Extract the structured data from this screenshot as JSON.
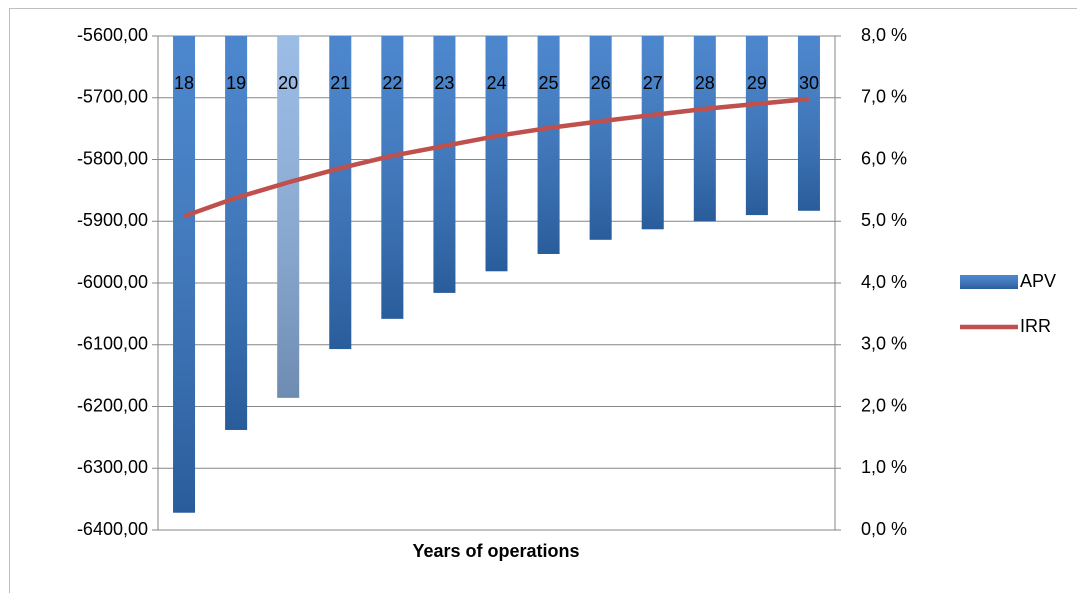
{
  "chart_data": {
    "type": "bar_line",
    "x_label": "Years of operations",
    "categories": [
      "18",
      "19",
      "20",
      "21",
      "22",
      "23",
      "24",
      "25",
      "26",
      "27",
      "28",
      "29",
      "30"
    ],
    "series": [
      {
        "name": "APV",
        "type": "bar",
        "color": "#3476c6",
        "bar_colors": [
          "#3476c6",
          "#3476c6",
          "#8db3e2",
          "#3476c6",
          "#3476c6",
          "#3476c6",
          "#3476c6",
          "#3476c6",
          "#3476c6",
          "#3476c6",
          "#3476c6",
          "#3476c6",
          "#3476c6"
        ],
        "values": [
          -6372,
          -6238,
          -6186,
          -6107,
          -6058,
          -6016,
          -5981,
          -5953,
          -5930,
          -5913,
          -5900,
          -5890,
          -5883
        ]
      },
      {
        "name": "IRR",
        "type": "line",
        "axis": "y2",
        "color": "#c0504d",
        "values": [
          5.08,
          5.38,
          5.63,
          5.86,
          6.06,
          6.22,
          6.38,
          6.51,
          6.62,
          6.72,
          6.82,
          6.9,
          6.98
        ]
      }
    ],
    "ylim": [
      -6400,
      -5600
    ],
    "yticks": [
      {
        "value": -6400,
        "label": "-6400,00"
      },
      {
        "value": -6300,
        "label": "-6300,00"
      },
      {
        "value": -6200,
        "label": "-6200,00"
      },
      {
        "value": -6100,
        "label": "-6100,00"
      },
      {
        "value": -6000,
        "label": "-6000,00"
      },
      {
        "value": -5900,
        "label": "-5900,00"
      },
      {
        "value": -5800,
        "label": "-5800,00"
      },
      {
        "value": -5700,
        "label": "-5700,00"
      },
      {
        "value": -5600,
        "label": "-5600,00"
      }
    ],
    "y2lim": [
      0,
      8
    ],
    "y2ticks": [
      {
        "value": 0,
        "label": "0,0 %"
      },
      {
        "value": 1,
        "label": "1,0 %"
      },
      {
        "value": 2,
        "label": "2,0 %"
      },
      {
        "value": 3,
        "label": "3,0 %"
      },
      {
        "value": 4,
        "label": "4,0 %"
      },
      {
        "value": 5,
        "label": "5,0 %"
      },
      {
        "value": 6,
        "label": "6,0 %"
      },
      {
        "value": 7,
        "label": "7,0 %"
      },
      {
        "value": 8,
        "label": "8,0 %"
      }
    ],
    "grid": true,
    "legend": "right"
  }
}
